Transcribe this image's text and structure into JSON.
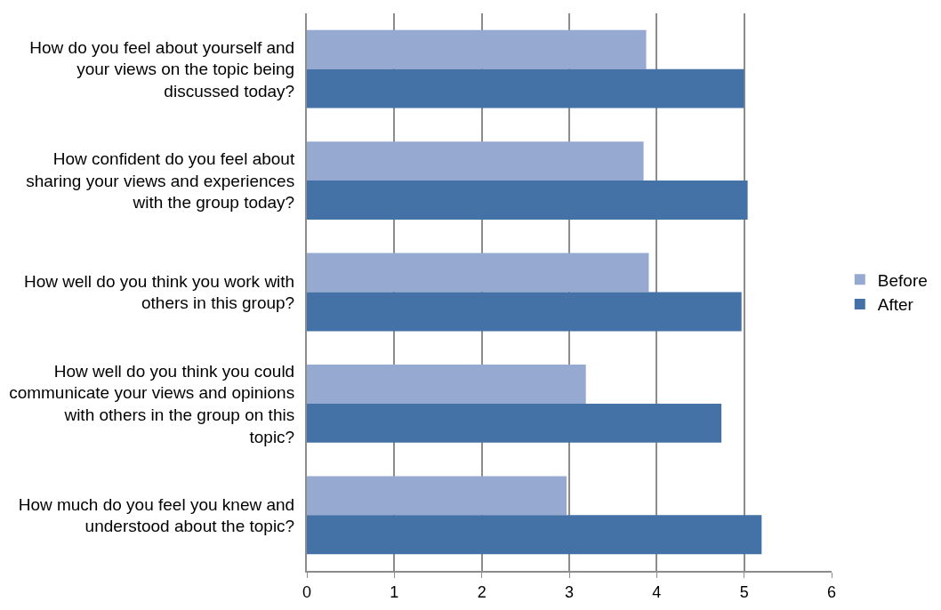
{
  "chart_data": {
    "type": "bar",
    "orientation": "horizontal",
    "categories": [
      "How do you feel about yourself and your views on the topic being discussed today?",
      "How confident do you feel about sharing your views and experiences with the group today?",
      "How well do you think you work with others in this group?",
      "How well do you think you could communicate your views and opinions with others in the group on this topic?",
      "How much do you feel you knew and understood about the topic?"
    ],
    "series": [
      {
        "name": "Before",
        "color": "#95a9d1",
        "values": [
          3.88,
          3.85,
          3.91,
          3.19,
          2.97
        ]
      },
      {
        "name": "After",
        "color": "#4472a6",
        "values": [
          5.0,
          5.04,
          4.97,
          4.74,
          5.2
        ]
      }
    ],
    "xlim": [
      0,
      6
    ],
    "xticks": [
      0,
      1,
      2,
      3,
      4,
      5,
      6
    ],
    "grid": "x",
    "legend": "right"
  }
}
